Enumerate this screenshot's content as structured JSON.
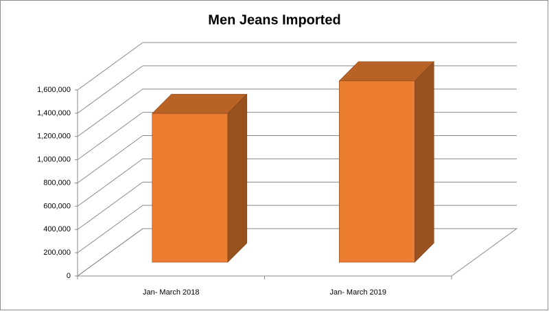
{
  "chart_data": {
    "type": "bar3d",
    "title": "Men Jeans Imported",
    "categories": [
      "Jan- March 2018",
      "Jan- March 2019"
    ],
    "values": [
      1280000,
      1560000
    ],
    "color": "#ED7D31",
    "ylim": [
      0,
      1600000
    ],
    "yticks": [
      0,
      {
        "value": 200000,
        "label": "200,000"
      },
      {
        "value": 400000,
        "label": "400,000"
      },
      {
        "value": 600000,
        "label": "600,000"
      },
      {
        "value": 800000,
        "label": "800,000"
      },
      {
        "value": 1000000,
        "label": "1,000,000"
      },
      {
        "value": 1200000,
        "label": "1,200,000"
      },
      {
        "value": 1400000,
        "label": "1,400,000"
      },
      {
        "value": 1600000,
        "label": "1,600,000"
      }
    ],
    "grid": true
  }
}
